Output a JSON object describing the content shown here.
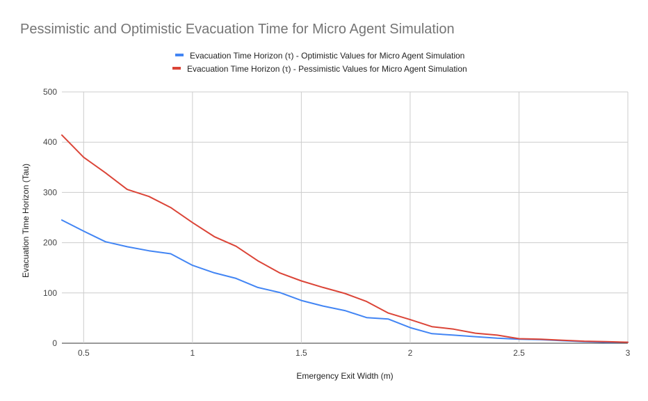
{
  "chart_data": {
    "type": "line",
    "title": "Pessimistic and Optimistic Evacuation Time for Micro Agent Simulation",
    "xlabel": "Emergency Exit Width (m)",
    "ylabel": "Evacuation Time Horizon (Tau)",
    "xlim": [
      0.4,
      3
    ],
    "ylim": [
      0,
      500
    ],
    "x_ticks": [
      "0.5",
      "1",
      "1.5",
      "2",
      "2.5",
      "3"
    ],
    "y_ticks": [
      "0",
      "100",
      "200",
      "300",
      "400",
      "500"
    ],
    "grid": true,
    "legend_position": "top",
    "x": [
      0.4,
      0.5,
      0.6,
      0.7,
      0.8,
      0.9,
      1.0,
      1.1,
      1.2,
      1.3,
      1.4,
      1.5,
      1.6,
      1.7,
      1.8,
      1.9,
      2.0,
      2.1,
      2.2,
      2.3,
      2.4,
      2.5,
      2.6,
      2.7,
      2.8,
      2.9,
      3.0
    ],
    "series": [
      {
        "name": "Evacuation Time Horizon (τ) - Optimistic Values for Micro Agent Simulation",
        "color": "#4285f4",
        "values": [
          245,
          223,
          202,
          192,
          184,
          178,
          155,
          140,
          129,
          111,
          101,
          85,
          74,
          65,
          51,
          48,
          31,
          19,
          16,
          13,
          10,
          8,
          7,
          5,
          3,
          2,
          2
        ]
      },
      {
        "name": "Evacuation Time Horizon (τ) - Pessimistic Values for Micro Agent Simulation",
        "color": "#db4437",
        "values": [
          414,
          370,
          339,
          306,
          292,
          270,
          240,
          212,
          193,
          164,
          140,
          124,
          111,
          99,
          83,
          60,
          47,
          33,
          28,
          20,
          16,
          9,
          8,
          6,
          4,
          3,
          2
        ]
      }
    ]
  }
}
